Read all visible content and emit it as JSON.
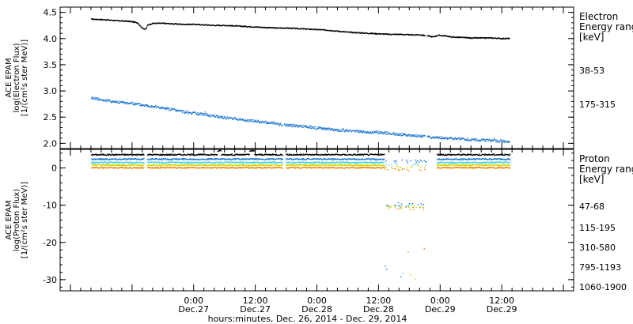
{
  "chart_data": [
    {
      "type": "scatter",
      "panel": "top",
      "ylabel_lines": [
        "ACE EPAM",
        "log(Electron Flux)",
        "[1/(cm²s ster MeV)]"
      ],
      "ylim": [
        1.9,
        4.6
      ],
      "yticks": [
        2.0,
        2.5,
        3.0,
        3.5,
        4.0,
        4.5
      ],
      "ytick_labels": [
        "2.0",
        "2.5",
        "3.0",
        "3.5",
        "4.0",
        "4.5"
      ],
      "legend_title_lines": [
        "Electron",
        "Energy ranges",
        "[keV]"
      ],
      "series": [
        {
          "name": "38-53",
          "color": "#000000",
          "x": [
            -20,
            -17.5,
            -15,
            -13,
            -12,
            -11,
            -10.2,
            -9.5,
            -9,
            -8,
            -6,
            -4,
            -2,
            0,
            2,
            4,
            6,
            8,
            10,
            12,
            14,
            16,
            18,
            20,
            22,
            24,
            26,
            28,
            30,
            32,
            34,
            36,
            38,
            40,
            42,
            44,
            45.5,
            46.5,
            47.5,
            49,
            50,
            52,
            54,
            56,
            58,
            60,
            61.5
          ],
          "y": [
            4.38,
            4.37,
            4.35,
            4.34,
            4.33,
            4.31,
            4.22,
            4.18,
            4.27,
            4.3,
            4.3,
            4.29,
            4.28,
            4.28,
            4.27,
            4.26,
            4.26,
            4.25,
            4.24,
            4.23,
            4.22,
            4.21,
            4.21,
            4.2,
            4.19,
            4.18,
            4.17,
            4.15,
            4.13,
            4.12,
            4.11,
            4.1,
            4.09,
            4.09,
            4.08,
            4.08,
            4.06,
            4.04,
            4.07,
            4.06,
            4.04,
            4.03,
            4.02,
            4.02,
            4.02,
            4.01,
            4.01
          ]
        },
        {
          "name": "175-315",
          "color": "#1a75d1",
          "x": [
            -20,
            -18,
            -16,
            -14,
            -12,
            -10,
            -8,
            -6,
            -4,
            -2,
            0,
            2,
            4,
            6,
            8,
            10,
            12,
            14,
            16,
            18,
            20,
            22,
            24,
            26,
            28,
            30,
            32,
            34,
            36,
            38,
            40,
            42,
            44,
            46,
            48,
            50,
            52,
            54,
            56,
            58,
            60,
            61.5
          ],
          "y": [
            2.88,
            2.84,
            2.81,
            2.79,
            2.77,
            2.74,
            2.72,
            2.68,
            2.65,
            2.61,
            2.58,
            2.56,
            2.53,
            2.5,
            2.48,
            2.45,
            2.43,
            2.41,
            2.38,
            2.36,
            2.34,
            2.33,
            2.3,
            2.28,
            2.26,
            2.25,
            2.24,
            2.22,
            2.22,
            2.2,
            2.18,
            2.16,
            2.15,
            2.13,
            2.12,
            2.1,
            2.09,
            2.08,
            2.07,
            2.06,
            2.05,
            2.05
          ]
        }
      ]
    },
    {
      "type": "scatter",
      "panel": "bottom",
      "ylabel_lines": [
        "ACE EPAM",
        "log(Proton Flux)",
        "[1/(cm²s ster MeV)]"
      ],
      "ylim": [
        -33,
        5
      ],
      "yticks": [
        0,
        -10,
        -20,
        -30
      ],
      "ytick_labels": [
        "0",
        "-10",
        "-20",
        "-30"
      ],
      "legend_title_lines": [
        "Proton",
        "Energy ranges",
        "[keV]"
      ],
      "series": [
        {
          "name": "47-68",
          "color": "#000000",
          "base": 3.7
        },
        {
          "name": "115-195",
          "color": "#1a75d1",
          "base": 2.5
        },
        {
          "name": "310-580",
          "color": "#3fd0e0",
          "base": 1.6
        },
        {
          "name": "795-1193",
          "color": "#c8d400",
          "base": 0.9
        },
        {
          "name": "1060-1900",
          "color": "#f08a00",
          "base": 0.2
        }
      ],
      "gaps_hours": [
        [
          -9.7,
          -9.2
        ],
        [
          17.3,
          17.8
        ],
        [
          45.2,
          47.3
        ]
      ],
      "dropout_hours": [
        37.0,
        45.2
      ],
      "dropout_levels": {
        "115-195": -9.6,
        "310-580": -10.0,
        "795-1193": -10.3,
        "1060-1900": -10.8
      }
    }
  ],
  "xaxis": {
    "xlim": [
      -26,
      74
    ],
    "major_ticks": [
      0,
      12,
      24,
      36,
      48,
      60
    ],
    "tick_time_labels": [
      "0:00",
      "12:00",
      "0:00",
      "12:00",
      "0:00",
      "12:00"
    ],
    "tick_date_labels": [
      "Dec.27",
      "Dec.27",
      "Dec.28",
      "Dec.28",
      "Dec.29",
      "Dec.29"
    ],
    "xlabel": "hours:minutes, Dec. 26, 2014 - Dec. 29, 2014"
  }
}
